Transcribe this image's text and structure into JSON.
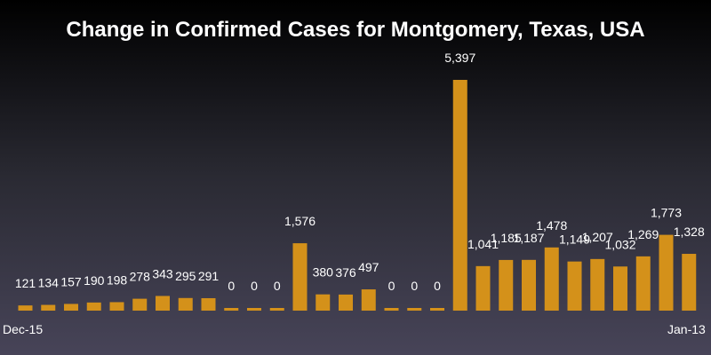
{
  "chart_data": {
    "type": "bar",
    "title": "Change in Confirmed Cases for Montgomery, Texas, USA",
    "xlabel": "",
    "ylabel": "",
    "x_tick_labels": {
      "first": "Dec-15",
      "last": "Jan-13"
    },
    "values": [
      121,
      134,
      157,
      190,
      198,
      278,
      343,
      295,
      291,
      0,
      0,
      0,
      1576,
      380,
      376,
      497,
      0,
      0,
      0,
      5397,
      1041,
      1185,
      1187,
      1478,
      1149,
      1207,
      1032,
      1269,
      1773,
      1328
    ],
    "data_labels": [
      "121",
      "134",
      "157",
      "190",
      "198",
      "278",
      "343",
      "295",
      "291",
      "0",
      "0",
      "0",
      "1,576",
      "380",
      "376",
      "497",
      "0",
      "0",
      "0",
      "5,397",
      "1,041",
      "1,185",
      "1,187",
      "1,478",
      "1,149",
      "1,207",
      "1,032",
      "1,269",
      "1,773",
      "1,328"
    ],
    "ylim": [
      0,
      5397
    ],
    "grid": false,
    "legend": "none",
    "bar_color": "#d4911a",
    "label_color": "#ffffff"
  }
}
